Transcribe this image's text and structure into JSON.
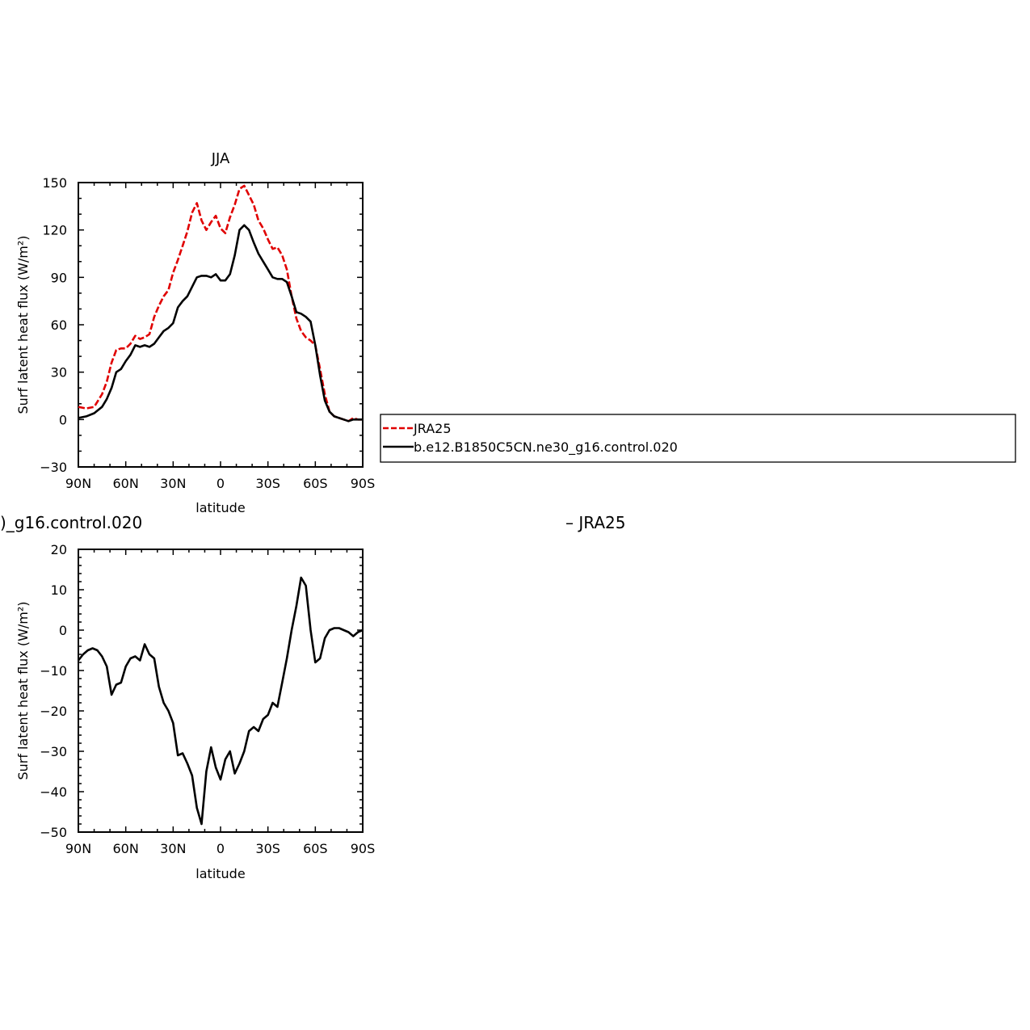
{
  "chart_data": [
    {
      "type": "line",
      "title": "JJA",
      "xlabel": "latitude",
      "ylabel": "Surf latent heat flux (W/m²)",
      "xlim": [
        90,
        -90
      ],
      "ylim": [
        -30,
        150
      ],
      "x_tick_values": [
        90,
        60,
        30,
        0,
        -30,
        -60,
        -90
      ],
      "x_tick_labels": [
        "90N",
        "60N",
        "30N",
        "0",
        "30S",
        "60S",
        "90S"
      ],
      "y_tick_values": [
        -30,
        0,
        30,
        60,
        90,
        120,
        150
      ],
      "y_tick_labels": [
        "−30",
        "0",
        "30",
        "60",
        "90",
        "120",
        "150"
      ],
      "legend_position": "right",
      "series": [
        {
          "name": "JRA25",
          "color": "#e00000",
          "dash": "dashed",
          "x": [
            90,
            85,
            80,
            75,
            72,
            69,
            66,
            63,
            60,
            57,
            54,
            51,
            48,
            45,
            42,
            39,
            36,
            33,
            30,
            27,
            24,
            21,
            18,
            15,
            12,
            9,
            6,
            3,
            0,
            -3,
            -6,
            -9,
            -12,
            -15,
            -18,
            -21,
            -24,
            -27,
            -30,
            -33,
            -36,
            -39,
            -42,
            -45,
            -48,
            -51,
            -54,
            -57,
            -60,
            -63,
            -66,
            -69,
            -72,
            -75,
            -78,
            -81,
            -84,
            -87,
            -90
          ],
          "y": [
            8,
            7,
            8,
            16,
            24,
            36,
            44,
            45,
            45,
            48,
            53,
            51,
            52,
            54,
            65,
            72,
            78,
            82,
            93,
            101,
            110,
            119,
            131,
            137,
            126,
            120,
            125,
            129,
            121,
            118,
            128,
            136,
            146,
            148,
            142,
            136,
            126,
            121,
            114,
            108,
            109,
            104,
            95,
            78,
            64,
            56,
            52,
            50,
            47,
            32,
            16,
            5,
            2,
            1,
            0,
            -1,
            1,
            0,
            0
          ]
        },
        {
          "name": "b.e12.B1850C5CN.ne30_g16.control.020",
          "color": "#000000",
          "dash": "solid",
          "x": [
            90,
            85,
            80,
            75,
            72,
            69,
            66,
            63,
            60,
            57,
            54,
            51,
            48,
            45,
            42,
            39,
            36,
            33,
            30,
            27,
            24,
            21,
            18,
            15,
            12,
            9,
            6,
            3,
            0,
            -3,
            -6,
            -9,
            -12,
            -15,
            -18,
            -21,
            -24,
            -27,
            -30,
            -33,
            -36,
            -39,
            -42,
            -45,
            -48,
            -51,
            -54,
            -57,
            -60,
            -63,
            -66,
            -69,
            -72,
            -75,
            -78,
            -81,
            -84,
            -87,
            -90
          ],
          "y": [
            1,
            2,
            4,
            8,
            13,
            20,
            30,
            32,
            37,
            41,
            47,
            46,
            47,
            46,
            48,
            52,
            56,
            58,
            61,
            71,
            75,
            78,
            84,
            90,
            91,
            91,
            90,
            92,
            88,
            88,
            92,
            104,
            120,
            123,
            120,
            112,
            105,
            100,
            95,
            90,
            89,
            89,
            87,
            78,
            68,
            67,
            65,
            62,
            47,
            28,
            12,
            5,
            2,
            1,
            0,
            -1,
            0,
            0,
            0
          ]
        }
      ]
    },
    {
      "type": "line",
      "title": "",
      "xlabel": "latitude",
      "ylabel": "Surf latent heat flux (W/m²)",
      "xlim": [
        90,
        -90
      ],
      "ylim": [
        -50,
        20
      ],
      "x_tick_values": [
        90,
        60,
        30,
        0,
        -30,
        -60,
        -90
      ],
      "x_tick_labels": [
        "90N",
        "60N",
        "30N",
        "0",
        "30S",
        "60S",
        "90S"
      ],
      "y_tick_values": [
        -50,
        -40,
        -30,
        -20,
        -10,
        0,
        10,
        20
      ],
      "y_tick_labels": [
        "−50",
        "−40",
        "−30",
        "−20",
        "−10",
        "0",
        "10",
        "20"
      ],
      "series": [
        {
          "color": "#000000",
          "dash": "solid",
          "x": [
            90,
            87,
            84,
            81,
            78,
            75,
            72,
            69,
            66,
            63,
            60,
            57,
            54,
            51,
            48,
            45,
            42,
            39,
            36,
            33,
            30,
            27,
            24,
            21,
            18,
            15,
            12,
            9,
            6,
            3,
            0,
            -3,
            -6,
            -9,
            -12,
            -15,
            -18,
            -21,
            -24,
            -27,
            -30,
            -33,
            -36,
            -39,
            -42,
            -45,
            -48,
            -51,
            -54,
            -57,
            -60,
            -63,
            -66,
            -69,
            -72,
            -75,
            -78,
            -81,
            -84,
            -87,
            -90
          ],
          "y": [
            -7.5,
            -6,
            -5,
            -4.5,
            -5,
            -6.5,
            -9,
            -16,
            -13.5,
            -13,
            -9,
            -7,
            -6.5,
            -7.5,
            -3.5,
            -6,
            -7,
            -14,
            -18,
            -20,
            -23,
            -31,
            -30.5,
            -33,
            -36,
            -44,
            -48,
            -35,
            -29,
            -34,
            -37,
            -32,
            -30,
            -35.5,
            -33,
            -30,
            -25,
            -24,
            -25,
            -22,
            -21,
            -18,
            -19,
            -13,
            -7,
            0,
            6,
            13,
            11,
            0,
            -8,
            -7,
            -2,
            0,
            0.5,
            0.5,
            0,
            -0.5,
            -1.5,
            -0.5,
            0
          ]
        }
      ]
    }
  ],
  "fragments": {
    "left": ")_g16.control.020",
    "right": "–  JRA25"
  }
}
